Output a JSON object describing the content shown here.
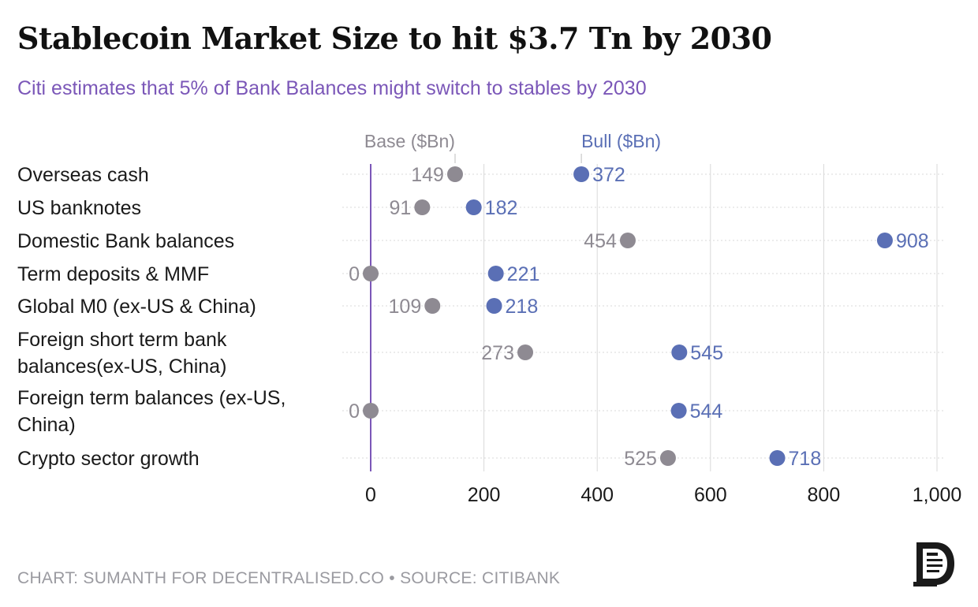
{
  "header": {
    "title": "Stablecoin Market Size to hit $3.7 Tn by 2030",
    "subtitle": "Citi estimates that 5% of Bank Balances might switch to stables by 2030"
  },
  "footer": {
    "text": "CHART: SUMANTH FOR DECENTRALISED.CO • SOURCE: CITIBANK"
  },
  "colors": {
    "base": "#8e8a92",
    "bull": "#5a6fb5",
    "accent": "#7b57b8",
    "zero_line": "#7b57b8",
    "grid": "#d9d9d9"
  },
  "logo": {
    "icon": "decentralised-logo-icon"
  },
  "chart_data": {
    "type": "dumbbell",
    "title": "Stablecoin Market Size to hit $3.7 Tn by 2030",
    "subtitle": "Citi estimates that 5% of Bank Balances might switch to stables by 2030",
    "series": [
      {
        "name": "Base ($Bn)"
      },
      {
        "name": "Bull ($Bn)"
      }
    ],
    "categories": [
      {
        "label": [
          "Overseas cash"
        ],
        "base": 149,
        "bull": 372
      },
      {
        "label": [
          "US banknotes"
        ],
        "base": 91,
        "bull": 182
      },
      {
        "label": [
          "Domestic Bank balances"
        ],
        "base": 454,
        "bull": 908
      },
      {
        "label": [
          "Term deposits & MMF"
        ],
        "base": 0,
        "bull": 221
      },
      {
        "label": [
          "Global M0 (ex-US & China)"
        ],
        "base": 109,
        "bull": 218
      },
      {
        "label": [
          "Foreign short term bank",
          "balances(ex-US, China)"
        ],
        "base": 273,
        "bull": 545
      },
      {
        "label": [
          "Foreign term balances (ex-US,",
          "China)"
        ],
        "base": 0,
        "bull": 544
      },
      {
        "label": [
          "Crypto sector growth"
        ],
        "base": 525,
        "bull": 718
      }
    ],
    "xlim": [
      0,
      1000
    ],
    "xticks": [
      0,
      200,
      400,
      600,
      800,
      1000
    ],
    "xtick_labels": [
      "0",
      "200",
      "400",
      "600",
      "800",
      "1,000"
    ],
    "grid": true
  }
}
